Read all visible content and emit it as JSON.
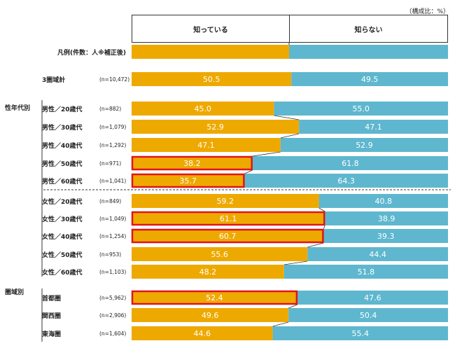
{
  "unit_note": "（構成比：%）",
  "columns": {
    "know": "知っている",
    "not_know": "知らない"
  },
  "colors": {
    "know": "#EEA900",
    "not_know": "#5EB7CE",
    "highlight": "#E2131B",
    "divider": "#333333"
  },
  "groups": {
    "gender_age": "性年代別",
    "region": "圏域別"
  },
  "chart_data": {
    "type": "bar",
    "stacked": true,
    "orientation": "horizontal",
    "xlim": [
      0,
      100
    ],
    "categories": [
      "凡例(件数：人※補正後)",
      "3圏域計",
      "男性／20歳代",
      "男性／30歳代",
      "男性／40歳代",
      "男性／50歳代",
      "男性／60歳代",
      "女性／20歳代",
      "女性／30歳代",
      "女性／40歳代",
      "女性／50歳代",
      "女性／60歳代",
      "首都圏",
      "関西圏",
      "東海圏"
    ],
    "sample_sizes": [
      "",
      "(n=10,472)",
      "(n=882)",
      "(n=1,079)",
      "(n=1,292)",
      "(n=971)",
      "(n=1,041)",
      "(n=849)",
      "(n=1,049)",
      "(n=1,254)",
      "(n=953)",
      "(n=1,103)",
      "(n=5,962)",
      "(n=2,906)",
      "(n=1,604)"
    ],
    "series": [
      {
        "name": "知っている",
        "values": [
          null,
          50.5,
          45.0,
          52.9,
          47.1,
          38.2,
          35.7,
          59.2,
          61.1,
          60.7,
          55.6,
          48.2,
          52.4,
          49.6,
          44.6
        ],
        "labels": [
          "",
          "50.5",
          "45.0",
          "52.9",
          "47.1",
          "38.2",
          "35.7",
          "59.2",
          "61.1",
          "60.7",
          "55.6",
          "48.2",
          "52.4",
          "49.6",
          "44.6"
        ]
      },
      {
        "name": "知らない",
        "values": [
          null,
          49.5,
          55.0,
          47.1,
          52.9,
          61.8,
          64.3,
          40.8,
          38.9,
          39.3,
          44.4,
          51.8,
          47.6,
          50.4,
          55.4
        ],
        "labels": [
          "",
          "49.5",
          "55.0",
          "47.1",
          "52.9",
          "61.8",
          "64.3",
          "40.8",
          "38.9",
          "39.3",
          "44.4",
          "51.8",
          "47.6",
          "50.4",
          "55.4"
        ]
      }
    ],
    "highlighted": [
      "男性／50歳代",
      "男性／60歳代",
      "女性／30歳代",
      "女性／40歳代",
      "首都圏"
    ],
    "legend_row": "凡例(件数：人※補正後)"
  }
}
